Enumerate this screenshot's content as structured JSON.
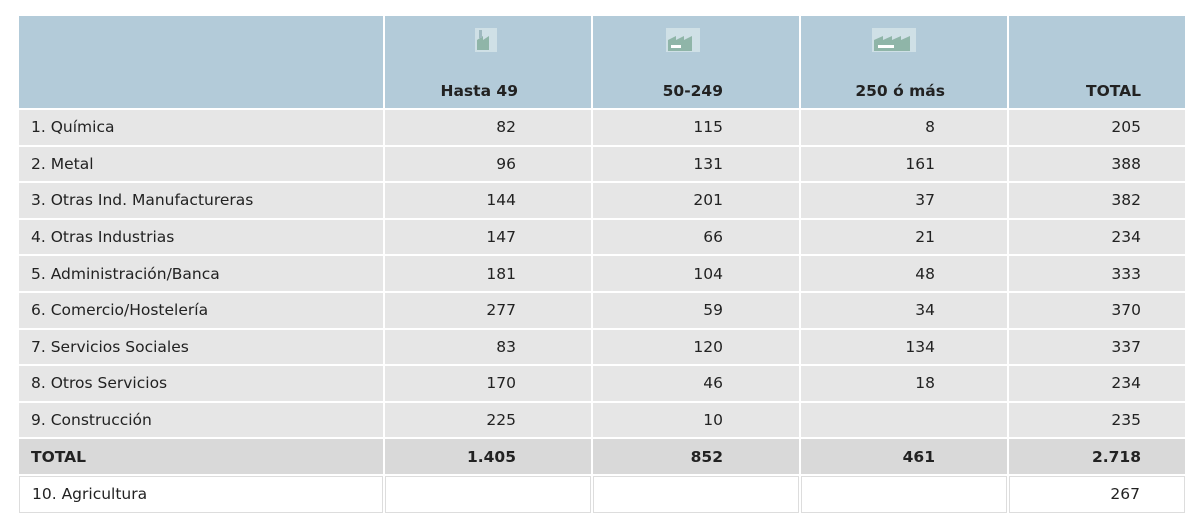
{
  "table": {
    "header": [
      "Hasta 49",
      "50-249",
      "250 ó más",
      "TOTAL"
    ],
    "rows": [
      [
        "1. Química",
        82,
        115,
        8,
        205
      ],
      [
        "2. Metal",
        96,
        131,
        161,
        388
      ],
      [
        "3. Otras Ind. Manufactureras",
        144,
        201,
        37,
        382
      ],
      [
        "4. Otras Industrias",
        147,
        66,
        21,
        234
      ],
      [
        "5. Administración/Banca",
        181,
        104,
        48,
        333
      ],
      [
        "6. Comercio/Hostelería",
        277,
        59,
        34,
        370
      ],
      [
        "7. Servicios Sociales",
        83,
        120,
        134,
        337
      ],
      [
        "8. Otros Servicios",
        170,
        46,
        18,
        234
      ],
      [
        "9. Construcción",
        225,
        10,
        null,
        235
      ]
    ],
    "total": [
      "TOTAL",
      "1.405",
      852,
      461,
      "2.718"
    ],
    "extra": [
      "10. Agricultura",
      null,
      null,
      null,
      267
    ]
  }
}
